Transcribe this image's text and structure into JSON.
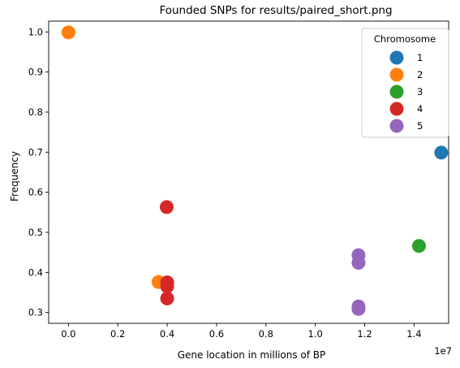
{
  "chart_data": {
    "type": "scatter",
    "title": "Founded SNPs for results/paired_short.png",
    "xlabel": "Gene location in millions of BP",
    "ylabel": "Frequency",
    "x_offset_label": "1e7",
    "xlim": [
      -0.08,
      1.54
    ],
    "ylim": [
      0.273,
      1.027
    ],
    "x_ticks": [
      0.0,
      0.2,
      0.4,
      0.6,
      0.8,
      1.0,
      1.2,
      1.4
    ],
    "x_tick_labels": [
      "0.0",
      "0.2",
      "0.4",
      "0.6",
      "0.8",
      "1.0",
      "1.2",
      "1.4"
    ],
    "y_ticks": [
      0.3,
      0.4,
      0.5,
      0.6,
      0.7,
      0.8,
      0.9,
      1.0
    ],
    "y_tick_labels": [
      "0.3",
      "0.4",
      "0.5",
      "0.6",
      "0.7",
      "0.8",
      "0.9",
      "1.0"
    ],
    "grid": false,
    "legend": {
      "title": "Chromosome",
      "placement": "top-right"
    },
    "series": [
      {
        "name": "1",
        "color": "#1f77b4",
        "points": [
          [
            1.51,
            0.699
          ]
        ]
      },
      {
        "name": "2",
        "color": "#ff7f0e",
        "points": [
          [
            0.0,
            0.999
          ],
          [
            0.365,
            0.376
          ]
        ]
      },
      {
        "name": "3",
        "color": "#2ca02c",
        "points": [
          [
            1.42,
            0.466
          ]
        ]
      },
      {
        "name": "4",
        "color": "#d62728",
        "points": [
          [
            0.398,
            0.563
          ],
          [
            0.4,
            0.375
          ],
          [
            0.4,
            0.365
          ],
          [
            0.4,
            0.335
          ]
        ]
      },
      {
        "name": "5",
        "color": "#9467bd",
        "points": [
          [
            1.175,
            0.443
          ],
          [
            1.175,
            0.424
          ],
          [
            1.175,
            0.315
          ],
          [
            1.175,
            0.309
          ]
        ]
      }
    ]
  }
}
